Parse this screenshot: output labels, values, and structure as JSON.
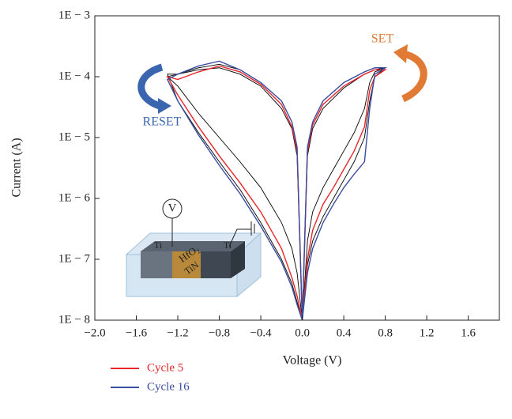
{
  "chart_data": {
    "type": "line",
    "x_label": "Voltage (V)",
    "y_label": "Current (A)",
    "y_scale": "log",
    "x": [
      0,
      0.05,
      0.1,
      0.2,
      0.3,
      0.4,
      0.5,
      0.6,
      0.65,
      0.7,
      0.8,
      0.7,
      0.6,
      0.4,
      0.2,
      0.1,
      0.05,
      0,
      -0.05,
      -0.1,
      -0.2,
      -0.4,
      -0.6,
      -0.8,
      -1.0,
      -1.2,
      -1.3,
      -1.2,
      -1.0,
      -0.8,
      -0.6,
      -0.4,
      -0.2,
      -0.1,
      -0.05,
      0
    ],
    "series": [
      {
        "color": "#000000",
        "values": [
          1e-08,
          2e-07,
          6e-07,
          1.5e-06,
          3e-06,
          6e-06,
          1.2e-05,
          3e-05,
          8e-05,
          0.00012,
          0.00014,
          0.00014,
          0.00012,
          8e-05,
          4e-05,
          1.8e-05,
          7e-06,
          1e-08,
          7e-06,
          1.8e-05,
          4e-05,
          8e-05,
          0.00013,
          0.00016,
          0.00014,
          0.00011,
          0.0001,
          7e-05,
          2.5e-05,
          1e-05,
          4e-06,
          1.5e-06,
          4e-07,
          1.5e-07,
          6e-08,
          1e-08
        ]
      },
      {
        "color": "#000000",
        "values": [
          1e-08,
          8e-08,
          2e-07,
          5e-07,
          1e-06,
          2e-06,
          4e-06,
          1e-05,
          4e-05,
          0.0001,
          0.00014,
          0.00013,
          0.00011,
          6.5e-05,
          3e-05,
          1.4e-05,
          5e-06,
          1e-08,
          5e-06,
          1.4e-05,
          3e-05,
          7e-05,
          0.00011,
          0.00014,
          0.00013,
          0.00011,
          0.00011,
          4e-05,
          1.2e-05,
          4e-06,
          1.4e-06,
          4e-07,
          1e-07,
          4e-08,
          2e-08,
          1e-08
        ]
      },
      {
        "name": "Cycle 5",
        "color": "#e8262a",
        "values": [
          1e-08,
          1e-07,
          3e-07,
          8e-07,
          1.5e-06,
          3e-06,
          6e-06,
          1.5e-05,
          6e-05,
          0.0001,
          0.00013,
          0.00013,
          0.00011,
          7e-05,
          3.5e-05,
          1.6e-05,
          6e-06,
          1e-08,
          6e-06,
          1.5e-05,
          3.5e-05,
          7.5e-05,
          0.00012,
          0.00015,
          0.00012,
          9e-05,
          0.0001,
          5e-05,
          1.5e-05,
          5e-06,
          1.8e-06,
          6e-07,
          1.5e-07,
          5e-08,
          2.5e-08,
          1e-08
        ]
      },
      {
        "name": "Cycle 16",
        "color": "#3a4ea0",
        "values": [
          1e-08,
          6e-08,
          1.5e-07,
          4e-07,
          8e-07,
          1.5e-06,
          2.5e-06,
          4e-06,
          3e-05,
          0.00011,
          0.00014,
          0.00014,
          0.00012,
          8e-05,
          4e-05,
          1.8e-05,
          7e-06,
          1e-08,
          7e-06,
          1.8e-05,
          4e-05,
          8e-05,
          0.00013,
          0.00018,
          0.00015,
          0.00011,
          9e-05,
          4e-05,
          1.1e-05,
          3.5e-06,
          1.2e-06,
          3.5e-07,
          9e-08,
          3.5e-08,
          1.8e-08,
          1e-08
        ]
      }
    ],
    "xlim": [
      -2.0,
      1.9
    ],
    "xticks": [
      {
        "value": -2.0,
        "label": "−2.0"
      },
      {
        "value": -1.6,
        "label": "−1.6"
      },
      {
        "value": -1.2,
        "label": "−1.2"
      },
      {
        "value": -0.8,
        "label": "−0.8"
      },
      {
        "value": -0.4,
        "label": "−0.4"
      },
      {
        "value": 0,
        "label": "0.0"
      },
      0.4,
      0.8,
      1.2,
      1.6
    ],
    "ylim": [
      1e-08,
      0.001
    ],
    "yticks": [
      {
        "value": 1e-08,
        "label": "1E − 8"
      },
      {
        "value": 1e-07,
        "label": "1E − 7"
      },
      {
        "value": 1e-06,
        "label": "1E − 6"
      },
      {
        "value": 1e-05,
        "label": "1E − 5"
      },
      {
        "value": 0.0001,
        "label": "1E − 4"
      },
      {
        "value": 0.001,
        "label": "1E − 3"
      }
    ],
    "annotations": [
      "SET",
      "RESET"
    ],
    "inset_labels": [
      "V",
      "Ti",
      "HfO₂",
      "TiN",
      "Ti"
    ]
  }
}
